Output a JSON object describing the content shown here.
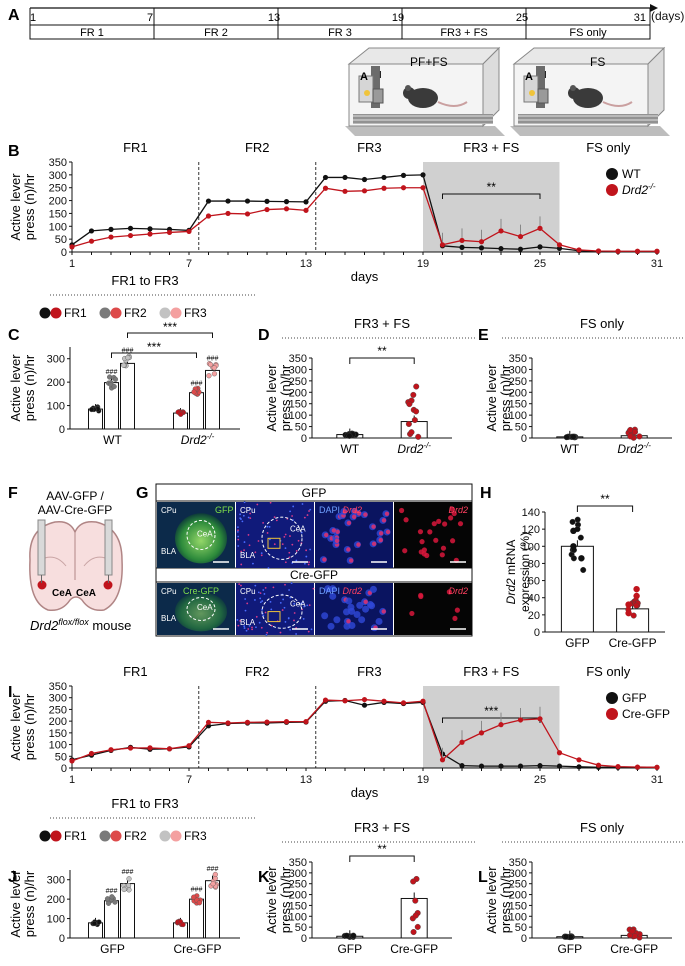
{
  "panels": [
    "A",
    "B",
    "C",
    "D",
    "E",
    "F",
    "G",
    "H",
    "I",
    "J",
    "K",
    "L"
  ],
  "timeline": {
    "days": [
      "1",
      "7",
      "13",
      "19",
      "25",
      "31"
    ],
    "unit": "(days)",
    "phases": [
      "FR 1",
      "FR 2",
      "FR 3",
      "FR3 + FS",
      "FS only"
    ],
    "box1_label": "PF+FS",
    "box2_label": "FS",
    "lever_a": "A",
    "lever_i": "I"
  },
  "colors": {
    "wt": "#111111",
    "ko": "#c0141c",
    "gray_fill": "#d0d0d0",
    "fr2_wt": "#7a7a7a",
    "fr3_wt": "#c2c2c2",
    "fr2_ko": "#dd4a4a",
    "fr3_ko": "#f4a0a0"
  },
  "panel_F": {
    "title_line1": "AAV-GFP /",
    "title_line2": "AAV-Cre-GFP",
    "region_left": "CeA",
    "region_right": "CeA",
    "mouse_label": "Drd2",
    "mouse_sup": "flox/flox",
    "mouse_suffix": " mouse"
  },
  "panel_G": {
    "row1_title": "GFP",
    "row2_title": "Cre-GFP",
    "tile_labels": [
      "CPu",
      "CeA",
      "BLA"
    ],
    "stain_gfp": "GFP",
    "stain_cregfp": "Cre-GFP",
    "dapi": "DAPI",
    "drd2": "Drd2"
  },
  "chart_data": [
    {
      "id": "B",
      "type": "line",
      "phase_labels": [
        "FR1",
        "FR2",
        "FR3",
        "FR3 + FS",
        "FS only"
      ],
      "xlabel": "days",
      "ylabel": "Active lever press (n)/hr",
      "xticks": [
        1,
        7,
        13,
        19,
        25,
        31
      ],
      "ylim": [
        0,
        350
      ],
      "yticks": [
        0,
        50,
        100,
        150,
        200,
        250,
        300,
        350
      ],
      "shaded_days": [
        19,
        25
      ],
      "annotation": "**",
      "legend_position": "right",
      "series": [
        {
          "name": "WT",
          "color": "#111111",
          "x": [
            1,
            2,
            3,
            4,
            5,
            6,
            7,
            8,
            9,
            10,
            11,
            12,
            13,
            14,
            15,
            16,
            17,
            18,
            19,
            20,
            21,
            22,
            23,
            24,
            25,
            26,
            27,
            28,
            29,
            30,
            31
          ],
          "y": [
            28,
            82,
            88,
            92,
            90,
            88,
            84,
            198,
            198,
            198,
            197,
            196,
            195,
            290,
            290,
            282,
            290,
            298,
            300,
            24,
            18,
            16,
            13,
            11,
            20,
            14,
            5,
            3,
            2,
            2,
            2
          ]
        },
        {
          "name": "Drd2-/-",
          "legend_base": "Drd2",
          "legend_sup": "-/-",
          "color": "#c0141c",
          "x": [
            1,
            2,
            3,
            4,
            5,
            6,
            7,
            8,
            9,
            10,
            11,
            12,
            13,
            14,
            15,
            16,
            17,
            18,
            19,
            20,
            21,
            22,
            23,
            24,
            25,
            26,
            27,
            28,
            29,
            30,
            31
          ],
          "y": [
            20,
            42,
            58,
            64,
            70,
            76,
            80,
            140,
            150,
            148,
            165,
            168,
            162,
            248,
            236,
            238,
            248,
            250,
            250,
            28,
            45,
            40,
            82,
            60,
            92,
            28,
            8,
            4,
            3,
            3,
            3
          ]
        }
      ]
    },
    {
      "id": "C",
      "type": "bar",
      "title": "FR1 to FR3",
      "legend": [
        "FR1",
        "FR2",
        "FR3"
      ],
      "categories": [
        "WT",
        "Drd2-/-"
      ],
      "category_bases": [
        "WT",
        "Drd2"
      ],
      "category_sups": [
        "",
        "-/-"
      ],
      "ylabel": "Active lever press (n)/hr",
      "ylim": [
        0,
        350
      ],
      "yticks": [
        0,
        100,
        200,
        300
      ],
      "series": [
        {
          "name": "FR1",
          "values": [
            85,
            68
          ]
        },
        {
          "name": "FR2",
          "values": [
            198,
            155
          ]
        },
        {
          "name": "FR3",
          "values": [
            280,
            250
          ]
        }
      ],
      "bar_annotations": [
        "###",
        "###",
        "###",
        "###"
      ],
      "bracket_annotations": [
        "***",
        "***"
      ]
    },
    {
      "id": "D",
      "type": "bar",
      "title": "FR3 + FS",
      "categories": [
        "WT",
        "Drd2-/-"
      ],
      "category_bases": [
        "WT",
        "Drd2"
      ],
      "category_sups": [
        "",
        "-/-"
      ],
      "ylabel": "Active lever press (n)/hr",
      "ylim": [
        0,
        350
      ],
      "yticks": [
        0,
        50,
        100,
        150,
        200,
        250,
        300,
        350
      ],
      "values": [
        15,
        72
      ],
      "annotation": "**"
    },
    {
      "id": "E",
      "type": "bar",
      "title": "FS only",
      "categories": [
        "WT",
        "Drd2-/-"
      ],
      "category_bases": [
        "WT",
        "Drd2"
      ],
      "category_sups": [
        "",
        "-/-"
      ],
      "ylabel": "Active lever press (n)/hr",
      "ylim": [
        0,
        350
      ],
      "yticks": [
        0,
        50,
        100,
        150,
        200,
        250,
        300,
        350
      ],
      "values": [
        5,
        10
      ]
    },
    {
      "id": "H",
      "type": "bar",
      "categories": [
        "GFP",
        "Cre-GFP"
      ],
      "ylabel": "Drd2 mRNA expression (%)",
      "ylabel_italic": "Drd2",
      "ylabel_rest": " mRNA",
      "ylabel_line2": "expression (%)",
      "ylim": [
        0,
        140
      ],
      "yticks": [
        0,
        20,
        40,
        60,
        80,
        100,
        120,
        140
      ],
      "values": [
        100,
        27
      ],
      "annotation": "**"
    },
    {
      "id": "I",
      "type": "line",
      "phase_labels": [
        "FR1",
        "FR2",
        "FR3",
        "FR3 + FS",
        "FS only"
      ],
      "xlabel": "days",
      "ylabel": "Active lever press (n)/hr",
      "xticks": [
        1,
        7,
        13,
        19,
        25,
        31
      ],
      "ylim": [
        0,
        350
      ],
      "yticks": [
        0,
        50,
        100,
        150,
        200,
        250,
        300,
        350
      ],
      "shaded_days": [
        19,
        25
      ],
      "annotation": "***",
      "legend_position": "right",
      "series": [
        {
          "name": "GFP",
          "color": "#111111",
          "x": [
            1,
            2,
            3,
            4,
            5,
            6,
            7,
            8,
            9,
            10,
            11,
            12,
            13,
            14,
            15,
            16,
            17,
            18,
            19,
            20,
            21,
            22,
            23,
            24,
            25,
            26,
            27,
            28,
            29,
            30,
            31
          ],
          "y": [
            35,
            55,
            75,
            88,
            80,
            82,
            90,
            180,
            190,
            192,
            192,
            195,
            196,
            285,
            288,
            268,
            280,
            275,
            280,
            60,
            10,
            8,
            8,
            8,
            10,
            8,
            5,
            3,
            3,
            3,
            3
          ]
        },
        {
          "name": "Cre-GFP",
          "color": "#c0141c",
          "x": [
            1,
            2,
            3,
            4,
            5,
            6,
            7,
            8,
            9,
            10,
            11,
            12,
            13,
            14,
            15,
            16,
            17,
            18,
            19,
            20,
            21,
            22,
            23,
            24,
            25,
            26,
            27,
            28,
            29,
            30,
            31
          ],
          "y": [
            30,
            62,
            78,
            85,
            86,
            82,
            95,
            195,
            192,
            195,
            196,
            198,
            198,
            290,
            287,
            292,
            285,
            278,
            285,
            35,
            110,
            150,
            185,
            205,
            210,
            65,
            35,
            12,
            6,
            4,
            3
          ]
        }
      ]
    },
    {
      "id": "J",
      "type": "bar",
      "title": "FR1 to FR3",
      "legend": [
        "FR1",
        "FR2",
        "FR3"
      ],
      "categories": [
        "GFP",
        "Cre-GFP"
      ],
      "ylabel": "Active lever press (n)/hr",
      "ylim": [
        0,
        350
      ],
      "yticks": [
        0,
        100,
        200,
        300
      ],
      "series": [
        {
          "name": "FR1",
          "values": [
            78,
            78
          ]
        },
        {
          "name": "FR2",
          "values": [
            192,
            200
          ]
        },
        {
          "name": "FR3",
          "values": [
            280,
            295
          ]
        }
      ],
      "bar_annotations": [
        "###",
        "###",
        "###",
        "###"
      ]
    },
    {
      "id": "K",
      "type": "bar",
      "title": "FR3 + FS",
      "categories": [
        "GFP",
        "Cre-GFP"
      ],
      "ylabel": "Active lever press (n)/hr",
      "ylim": [
        0,
        350
      ],
      "yticks": [
        0,
        50,
        100,
        150,
        200,
        250,
        300,
        350
      ],
      "values": [
        8,
        182
      ],
      "annotation": "**"
    },
    {
      "id": "L",
      "type": "bar",
      "title": "FS only",
      "categories": [
        "GFP",
        "Cre-GFP"
      ],
      "ylabel": "Active lever press (n)/hr",
      "ylim": [
        0,
        350
      ],
      "yticks": [
        0,
        50,
        100,
        150,
        200,
        250,
        300,
        350
      ],
      "values": [
        6,
        12
      ]
    }
  ]
}
